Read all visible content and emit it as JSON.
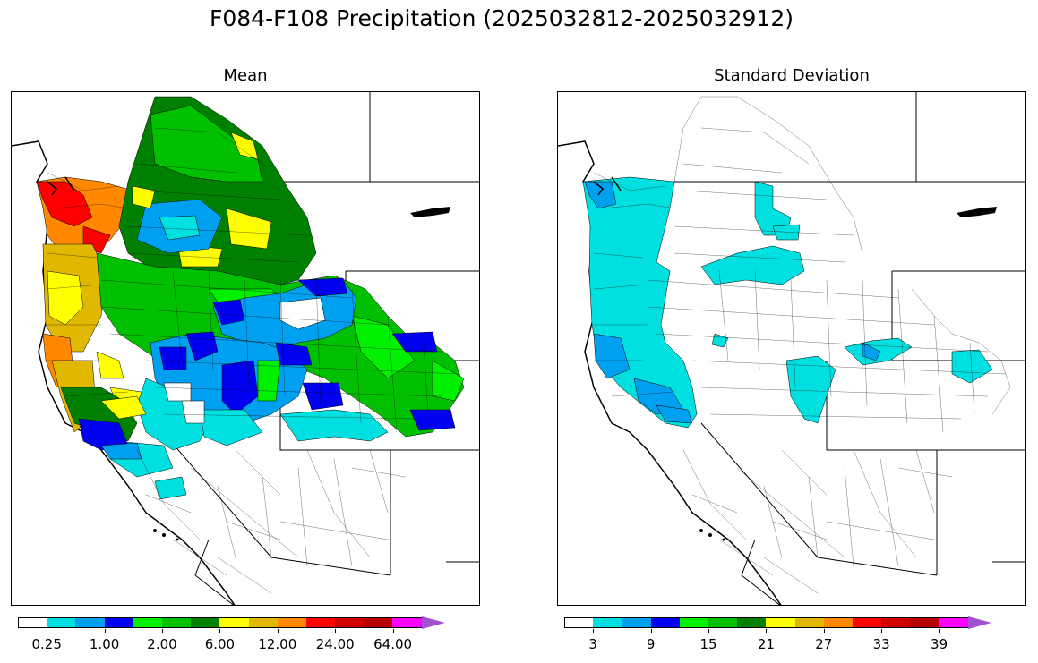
{
  "title": "F084-F108 Precipitation (2025032812-2025032912)",
  "panels": [
    {
      "id": "mean",
      "title": "Mean",
      "colorbar": {
        "colors": [
          "#ffffff",
          "#00e0e0",
          "#00a0f0",
          "#0000f0",
          "#00f000",
          "#00c000",
          "#008000",
          "#ffff00",
          "#e0b800",
          "#ff8800",
          "#ff0000",
          "#d00000",
          "#b80000",
          "#ff00ff",
          "#a050d0"
        ],
        "tick_labels": [
          "0.25",
          "1.00",
          "2.00",
          "6.00",
          "12.00",
          "24.00",
          "64.00"
        ]
      }
    },
    {
      "id": "stddev",
      "title": "Standard Deviation",
      "colorbar": {
        "colors": [
          "#ffffff",
          "#00e0e0",
          "#00a0f0",
          "#0000f0",
          "#00f000",
          "#00c000",
          "#008000",
          "#ffff00",
          "#e0b800",
          "#ff8800",
          "#ff0000",
          "#d00000",
          "#b80000",
          "#ff00ff",
          "#a050d0"
        ],
        "tick_labels": [
          "3",
          "9",
          "15",
          "21",
          "27",
          "33",
          "39"
        ]
      }
    }
  ]
}
